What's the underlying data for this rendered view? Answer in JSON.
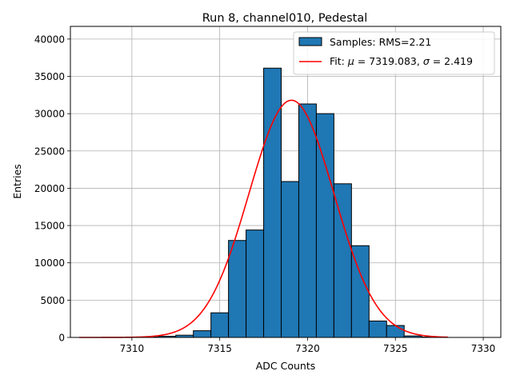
{
  "chart_data": {
    "type": "bar",
    "title": "Run 8, channel010, Pedestal",
    "xlabel": "ADC Counts",
    "ylabel": "Entries",
    "xlim": [
      7306.5,
      7331.0
    ],
    "ylim": [
      0,
      41700
    ],
    "xticks": [
      7310,
      7315,
      7320,
      7325,
      7330
    ],
    "yticks": [
      0,
      5000,
      10000,
      15000,
      20000,
      25000,
      30000,
      35000,
      40000
    ],
    "grid": true,
    "legend_position": "top-right",
    "histogram": {
      "name": "Samples: RMS=2.21",
      "color": "#1f77b4",
      "bin_width": 1,
      "bins": [
        {
          "left": 7310.5,
          "count": 50
        },
        {
          "left": 7311.5,
          "count": 150
        },
        {
          "left": 7312.5,
          "count": 300
        },
        {
          "left": 7313.5,
          "count": 900
        },
        {
          "left": 7314.5,
          "count": 3300
        },
        {
          "left": 7315.5,
          "count": 13000
        },
        {
          "left": 7316.5,
          "count": 14400
        },
        {
          "left": 7317.5,
          "count": 36100
        },
        {
          "left": 7318.5,
          "count": 20900
        },
        {
          "left": 7319.5,
          "count": 31300
        },
        {
          "left": 7320.5,
          "count": 30000
        },
        {
          "left": 7321.5,
          "count": 20600
        },
        {
          "left": 7322.5,
          "count": 12300
        },
        {
          "left": 7323.5,
          "count": 2200
        },
        {
          "left": 7324.5,
          "count": 1600
        },
        {
          "left": 7325.5,
          "count": 200
        },
        {
          "left": 7326.5,
          "count": 50
        }
      ]
    },
    "fit": {
      "label_prefix": "Fit: ",
      "mu_symbol": "μ",
      "mu_text": " = 7319.083, ",
      "sigma_symbol": "σ",
      "sigma_text": " = 2.419",
      "color": "#ff0000",
      "mu": 7319.083,
      "sigma": 2.419,
      "amplitude": 31800,
      "x_range": [
        7307,
        7328
      ]
    }
  }
}
